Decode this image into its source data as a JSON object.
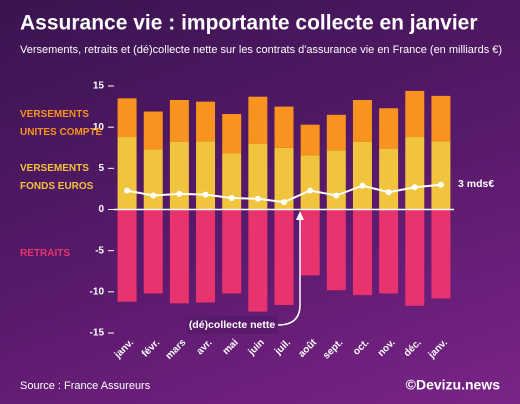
{
  "chart_data": {
    "type": "bar",
    "stacked": true,
    "title": "Assurance vie : importante collecte en janvier",
    "subtitle": "Versements, retraits et (dé)collecte nette sur les contrats d'assurance vie en France (en milliards €)",
    "categories": [
      "janv.",
      "févr.",
      "mars",
      "avr.",
      "mai",
      "juin",
      "juil.",
      "août",
      "sept.",
      "oct.",
      "nov.",
      "déc.",
      "janv."
    ],
    "series": [
      {
        "name": "VERSEMENTS FONDS EUROS",
        "color": "#f0c43c",
        "values": [
          8.8,
          7.3,
          8.2,
          8.3,
          6.8,
          8.0,
          7.5,
          6.6,
          7.2,
          8.2,
          7.4,
          8.8,
          8.3
        ]
      },
      {
        "name": "VERSEMENTS UNITES COMPTE",
        "color": "#f7931e",
        "values": [
          4.7,
          4.6,
          5.1,
          4.8,
          4.8,
          5.7,
          5.0,
          3.7,
          4.3,
          5.1,
          4.9,
          5.6,
          5.5
        ]
      },
      {
        "name": "RETRAITS",
        "color": "#e8336f",
        "values": [
          -11.2,
          -10.2,
          -11.4,
          -11.3,
          -10.2,
          -12.4,
          -11.6,
          -8.0,
          -9.8,
          -10.4,
          -10.2,
          -11.7,
          -10.8
        ]
      },
      {
        "type": "line",
        "color": "#ffffff",
        "values": [
          2.3,
          1.7,
          1.9,
          1.8,
          1.4,
          1.3,
          0.9,
          2.3,
          1.7,
          2.9,
          2.1,
          2.7,
          3.0
        ]
      }
    ],
    "ylim": [
      -15,
      15
    ],
    "yticks": [
      -15,
      -10,
      -5,
      0,
      5,
      10,
      15
    ],
    "grid": false,
    "annotations": [
      "(dé)collecte nette",
      "3 mds€"
    ],
    "source": "Source : France Assureurs",
    "brand": "©Devizu.news"
  }
}
